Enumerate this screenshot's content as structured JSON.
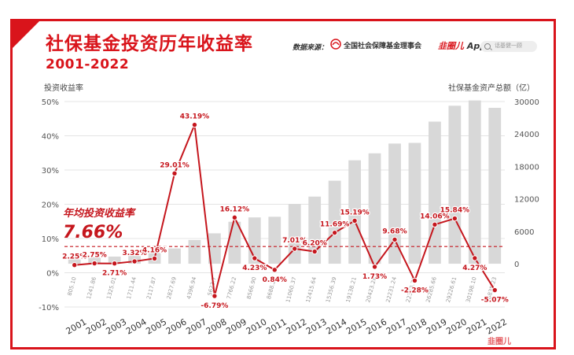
{
  "header": {
    "title": "社保基金投资历年收益率",
    "subtitle": "2001-2022",
    "source_label": "数据来源：",
    "source_org": "全国社会保障基金理事会",
    "app_logo": "韭圈儿",
    "app_name": "App",
    "search_placeholder": "话基健一顾"
  },
  "watermark": "韭圈儿",
  "colors": {
    "accent": "#d9141b",
    "bar": "#d8d8d8",
    "line": "#c5161d"
  },
  "chart_data": {
    "type": "bar+line",
    "categories": [
      "2001",
      "2002",
      "2003",
      "2004",
      "2005",
      "2006",
      "2007",
      "2008",
      "2009",
      "2010",
      "2011",
      "2012",
      "2013",
      "2014",
      "2015",
      "2016",
      "2017",
      "2018",
      "2019",
      "2020",
      "2021",
      "2022"
    ],
    "series": [
      {
        "axis": "right",
        "kind": "bar",
        "values": [
          805.1,
          1241.86,
          1325.01,
          1711.44,
          2117.87,
          2827.69,
          4396.94,
          5623.7,
          7766.22,
          8566.9,
          8688.2,
          11060.37,
          12415.64,
          15356.39,
          19138.21,
          20423.28,
          22231.24,
          22353.78,
          26285.66,
          29226.61,
          30198.1,
          28835.23
        ],
        "labels": [
          "805.10",
          "1241.86",
          "1325.01",
          "1711.44",
          "2117.87",
          "2827.69",
          "4396.94",
          "5623.7",
          "7766.22",
          "8566.90",
          "8688.20",
          "11060.37",
          "12415.64",
          "15356.39",
          "19138.21",
          "20423.28",
          "22231.24",
          "22353.78",
          "26285.66",
          "29226.61",
          "30198.10",
          "28835.23"
        ]
      },
      {
        "axis": "left",
        "kind": "line",
        "values": [
          2.25,
          2.75,
          2.71,
          3.32,
          4.16,
          29.01,
          43.19,
          -6.79,
          16.12,
          4.23,
          0.84,
          7.01,
          6.2,
          11.69,
          15.19,
          1.73,
          9.68,
          -2.28,
          14.06,
          15.84,
          4.27,
          -5.07
        ],
        "labels": [
          "2.25%",
          "2.75%",
          "2.71%",
          "3.32%",
          "4.16%",
          "29.01%",
          "43.19%",
          "-6.79%",
          "16.12%",
          "4.23%",
          "0.84%",
          "7.01%",
          "6.20%",
          "11.69%",
          "15.19%",
          "1.73%",
          "9.68%",
          "-2.28%",
          "14.06%",
          "15.84%",
          "4.27%",
          "-5.07%"
        ]
      }
    ],
    "y_left": {
      "label": "投资收益率",
      "ticks": [
        "50%",
        "40%",
        "30%",
        "20%",
        "10%",
        "0%",
        "-10%"
      ],
      "range": [
        -10,
        50
      ]
    },
    "y_right": {
      "label": "社保基金资产总额（亿）",
      "ticks": [
        "30000",
        "24000",
        "18000",
        "12000",
        "6000",
        "0"
      ],
      "range": [
        -8000,
        30000
      ]
    },
    "reference_line": {
      "value": 7.66,
      "label_title": "年均投资收益率",
      "label_value": "7.66%"
    },
    "grid": true
  }
}
